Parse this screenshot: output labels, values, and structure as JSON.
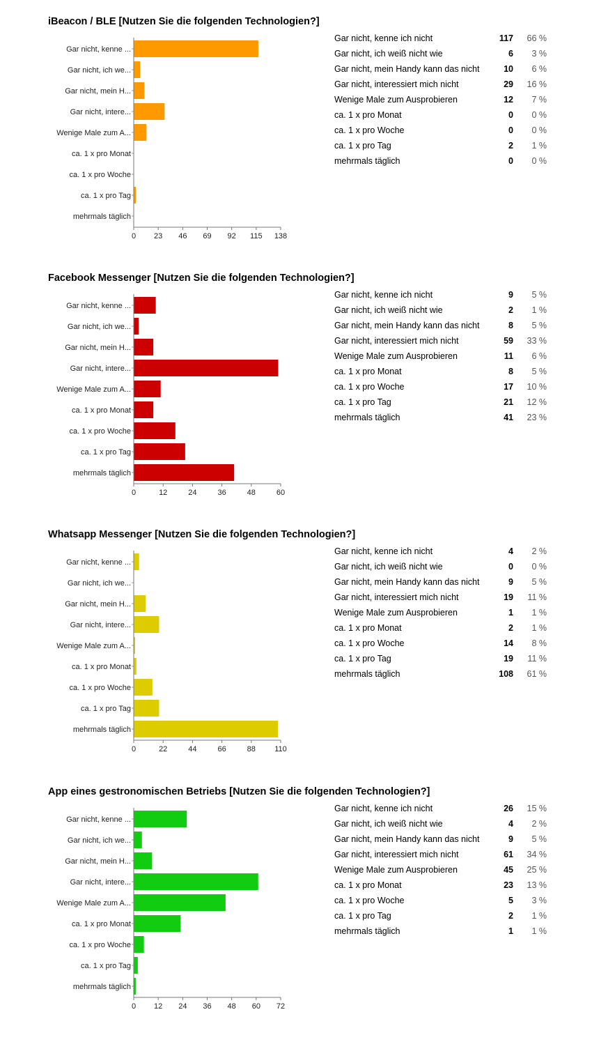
{
  "charts": [
    {
      "title": "iBeacon / BLE [Nutzen Sie die folgenden Technologien?]",
      "color": "#ff9900",
      "chart_data": {
        "type": "bar",
        "orientation": "horizontal",
        "categories": [
          "Gar nicht, kenne ...",
          "Gar nicht, ich we...",
          "Gar nicht, mein H...",
          "Gar nicht, intere...",
          "Wenige Male zum A...",
          "ca. 1 x pro Monat",
          "ca. 1 x pro Woche",
          "ca. 1 x pro Tag",
          "mehrmals täglich"
        ],
        "values": [
          117,
          6,
          10,
          29,
          12,
          0,
          0,
          2,
          0
        ],
        "xticks": [
          "0",
          "23",
          "46",
          "69",
          "92",
          "115",
          "138"
        ],
        "xlim": [
          0,
          138
        ],
        "grid": false
      },
      "rows": [
        {
          "label": "Gar nicht, kenne ich nicht",
          "count": "117",
          "pct": "66 %"
        },
        {
          "label": "Gar nicht, ich weiß nicht wie",
          "count": "6",
          "pct": "3 %"
        },
        {
          "label": "Gar nicht, mein Handy kann das nicht",
          "count": "10",
          "pct": "6 %"
        },
        {
          "label": "Gar nicht, interessiert mich nicht",
          "count": "29",
          "pct": "16 %"
        },
        {
          "label": "Wenige Male zum Ausprobieren",
          "count": "12",
          "pct": "7 %"
        },
        {
          "label": "ca. 1 x pro Monat",
          "count": "0",
          "pct": "0 %"
        },
        {
          "label": "ca. 1 x pro Woche",
          "count": "0",
          "pct": "0 %"
        },
        {
          "label": "ca. 1 x pro Tag",
          "count": "2",
          "pct": "1 %"
        },
        {
          "label": "mehrmals täglich",
          "count": "0",
          "pct": "0 %"
        }
      ]
    },
    {
      "title": "Facebook Messenger [Nutzen Sie die folgenden Technologien?]",
      "color": "#cc0000",
      "chart_data": {
        "type": "bar",
        "orientation": "horizontal",
        "categories": [
          "Gar nicht, kenne ...",
          "Gar nicht, ich we...",
          "Gar nicht, mein H...",
          "Gar nicht, intere...",
          "Wenige Male zum A...",
          "ca. 1 x pro Monat",
          "ca. 1 x pro Woche",
          "ca. 1 x pro Tag",
          "mehrmals täglich"
        ],
        "values": [
          9,
          2,
          8,
          59,
          11,
          8,
          17,
          21,
          41
        ],
        "xticks": [
          "0",
          "12",
          "24",
          "36",
          "48",
          "60"
        ],
        "xlim": [
          0,
          60
        ],
        "grid": false
      },
      "rows": [
        {
          "label": "Gar nicht, kenne ich nicht",
          "count": "9",
          "pct": "5 %"
        },
        {
          "label": "Gar nicht, ich weiß nicht wie",
          "count": "2",
          "pct": "1 %"
        },
        {
          "label": "Gar nicht, mein Handy kann das nicht",
          "count": "8",
          "pct": "5 %"
        },
        {
          "label": "Gar nicht, interessiert mich nicht",
          "count": "59",
          "pct": "33 %"
        },
        {
          "label": "Wenige Male zum Ausprobieren",
          "count": "11",
          "pct": "6 %"
        },
        {
          "label": "ca. 1 x pro Monat",
          "count": "8",
          "pct": "5 %"
        },
        {
          "label": "ca. 1 x pro Woche",
          "count": "17",
          "pct": "10 %"
        },
        {
          "label": "ca. 1 x pro Tag",
          "count": "21",
          "pct": "12 %"
        },
        {
          "label": "mehrmals täglich",
          "count": "41",
          "pct": "23 %"
        }
      ]
    },
    {
      "title": "Whatsapp Messenger [Nutzen Sie die folgenden Technologien?]",
      "color": "#ddcc00",
      "chart_data": {
        "type": "bar",
        "orientation": "horizontal",
        "categories": [
          "Gar nicht, kenne ...",
          "Gar nicht, ich we...",
          "Gar nicht, mein H...",
          "Gar nicht, intere...",
          "Wenige Male zum A...",
          "ca. 1 x pro Monat",
          "ca. 1 x pro Woche",
          "ca. 1 x pro Tag",
          "mehrmals täglich"
        ],
        "values": [
          4,
          0,
          9,
          19,
          1,
          2,
          14,
          19,
          108
        ],
        "xticks": [
          "0",
          "22",
          "44",
          "66",
          "88",
          "110"
        ],
        "xlim": [
          0,
          110
        ],
        "grid": false
      },
      "rows": [
        {
          "label": "Gar nicht, kenne ich nicht",
          "count": "4",
          "pct": "2 %"
        },
        {
          "label": "Gar nicht, ich weiß nicht wie",
          "count": "0",
          "pct": "0 %"
        },
        {
          "label": "Gar nicht, mein Handy kann das nicht",
          "count": "9",
          "pct": "5 %"
        },
        {
          "label": "Gar nicht, interessiert mich nicht",
          "count": "19",
          "pct": "11 %"
        },
        {
          "label": "Wenige Male zum Ausprobieren",
          "count": "1",
          "pct": "1 %"
        },
        {
          "label": "ca. 1 x pro Monat",
          "count": "2",
          "pct": "1 %"
        },
        {
          "label": "ca. 1 x pro Woche",
          "count": "14",
          "pct": "8 %"
        },
        {
          "label": "ca. 1 x pro Tag",
          "count": "19",
          "pct": "11 %"
        },
        {
          "label": "mehrmals täglich",
          "count": "108",
          "pct": "61 %"
        }
      ]
    },
    {
      "title": "App eines gestronomischen Betriebs [Nutzen Sie die folgenden Technologien?]",
      "color": "#11cc11",
      "chart_data": {
        "type": "bar",
        "orientation": "horizontal",
        "categories": [
          "Gar nicht, kenne ...",
          "Gar nicht, ich we...",
          "Gar nicht, mein H...",
          "Gar nicht, intere...",
          "Wenige Male zum A...",
          "ca. 1 x pro Monat",
          "ca. 1 x pro Woche",
          "ca. 1 x pro Tag",
          "mehrmals täglich"
        ],
        "values": [
          26,
          4,
          9,
          61,
          45,
          23,
          5,
          2,
          1
        ],
        "xticks": [
          "0",
          "12",
          "24",
          "36",
          "48",
          "60",
          "72"
        ],
        "xlim": [
          0,
          72
        ],
        "grid": false
      },
      "rows": [
        {
          "label": "Gar nicht, kenne ich nicht",
          "count": "26",
          "pct": "15 %"
        },
        {
          "label": "Gar nicht, ich weiß nicht wie",
          "count": "4",
          "pct": "2 %"
        },
        {
          "label": "Gar nicht, mein Handy kann das nicht",
          "count": "9",
          "pct": "5 %"
        },
        {
          "label": "Gar nicht, interessiert mich nicht",
          "count": "61",
          "pct": "34 %"
        },
        {
          "label": "Wenige Male zum Ausprobieren",
          "count": "45",
          "pct": "25 %"
        },
        {
          "label": "ca. 1 x pro Monat",
          "count": "23",
          "pct": "13 %"
        },
        {
          "label": "ca. 1 x pro Woche",
          "count": "5",
          "pct": "3 %"
        },
        {
          "label": "ca. 1 x pro Tag",
          "count": "2",
          "pct": "1 %"
        },
        {
          "label": "mehrmals täglich",
          "count": "1",
          "pct": "1 %"
        }
      ]
    }
  ]
}
